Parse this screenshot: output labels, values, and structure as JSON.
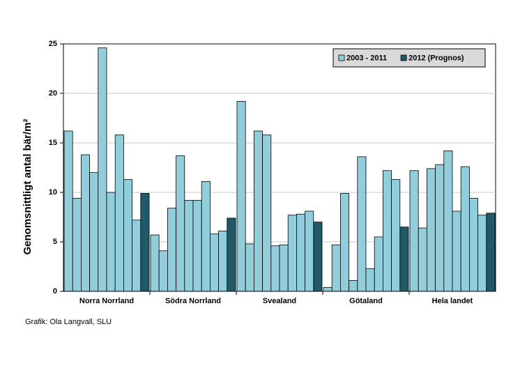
{
  "chart_data": {
    "type": "grouped-bar",
    "ylabel": "Genomsnittligt antal bär/m²",
    "categories": [
      "Norra Norrland",
      "Södra Norrland",
      "Svealand",
      "Götaland",
      "Hela landet"
    ],
    "series": [
      {
        "name": "2003 - 2011",
        "color": "#92cddc",
        "values": [
          [
            16.2,
            9.4,
            13.8,
            12.0,
            24.6,
            10.0,
            15.8,
            11.3,
            7.2
          ],
          [
            5.7,
            4.1,
            8.4,
            13.7,
            9.2,
            9.2,
            11.1,
            5.8,
            6.1
          ],
          [
            19.2,
            4.8,
            16.2,
            15.8,
            4.6,
            4.7,
            7.7,
            7.8,
            8.1
          ],
          [
            0.4,
            4.7,
            9.9,
            1.1,
            13.6,
            2.3,
            5.5,
            12.2,
            11.3
          ],
          [
            12.2,
            6.4,
            12.4,
            12.8,
            14.2,
            8.1,
            12.6,
            9.4,
            7.7
          ]
        ]
      },
      {
        "name": "2012 (Prognos)",
        "color": "#215968",
        "values": [
          9.9,
          7.4,
          7.0,
          6.5,
          7.9
        ]
      }
    ],
    "ylim": [
      0,
      25
    ],
    "yticks": [
      0,
      5,
      10,
      15,
      20,
      25
    ],
    "grid": true,
    "legend": "top-right",
    "source": "Grafik: Ola Langvall, SLU"
  }
}
